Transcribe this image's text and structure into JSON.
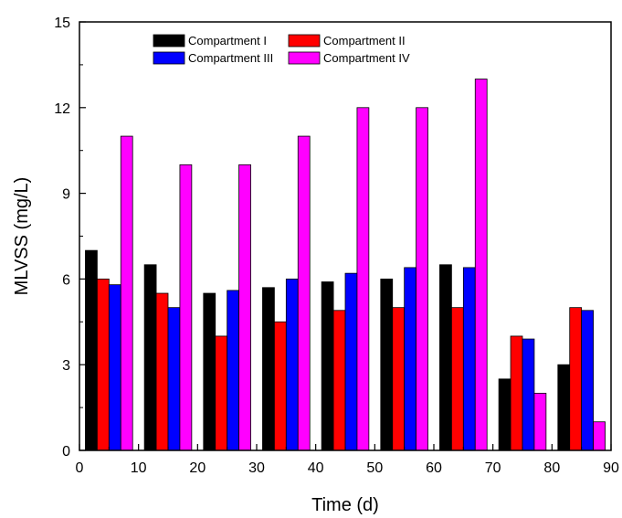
{
  "chart_data": {
    "type": "bar",
    "xlabel": "Time (d)",
    "ylabel": "MLVSS (mg/L)",
    "xlim": [
      0,
      90
    ],
    "ylim": [
      0,
      15
    ],
    "x_ticks": [
      0,
      10,
      20,
      30,
      40,
      50,
      60,
      70,
      80,
      90
    ],
    "y_ticks": [
      0,
      3,
      6,
      9,
      12,
      15
    ],
    "grid": false,
    "legend_position": "top-center",
    "group_starts": [
      1,
      11,
      21,
      31,
      41,
      51,
      61,
      71,
      81
    ],
    "bar_width": 2,
    "series": [
      {
        "name": "Compartment I",
        "color": "#000000",
        "values": [
          7.0,
          6.5,
          5.5,
          5.7,
          5.9,
          6.0,
          6.5,
          2.5,
          3.0
        ]
      },
      {
        "name": "Compartment II",
        "color": "#ff0000",
        "values": [
          6.0,
          5.5,
          4.0,
          4.5,
          4.9,
          5.0,
          5.0,
          4.0,
          5.0
        ]
      },
      {
        "name": "Compartment III",
        "color": "#0000ff",
        "values": [
          5.8,
          5.0,
          5.6,
          6.0,
          6.2,
          6.4,
          6.4,
          3.9,
          4.9
        ]
      },
      {
        "name": "Compartment IV",
        "color": "#ff00ff",
        "values": [
          11.0,
          10.0,
          10.0,
          11.0,
          12.0,
          12.0,
          13.0,
          2.0,
          1.0
        ]
      }
    ]
  }
}
